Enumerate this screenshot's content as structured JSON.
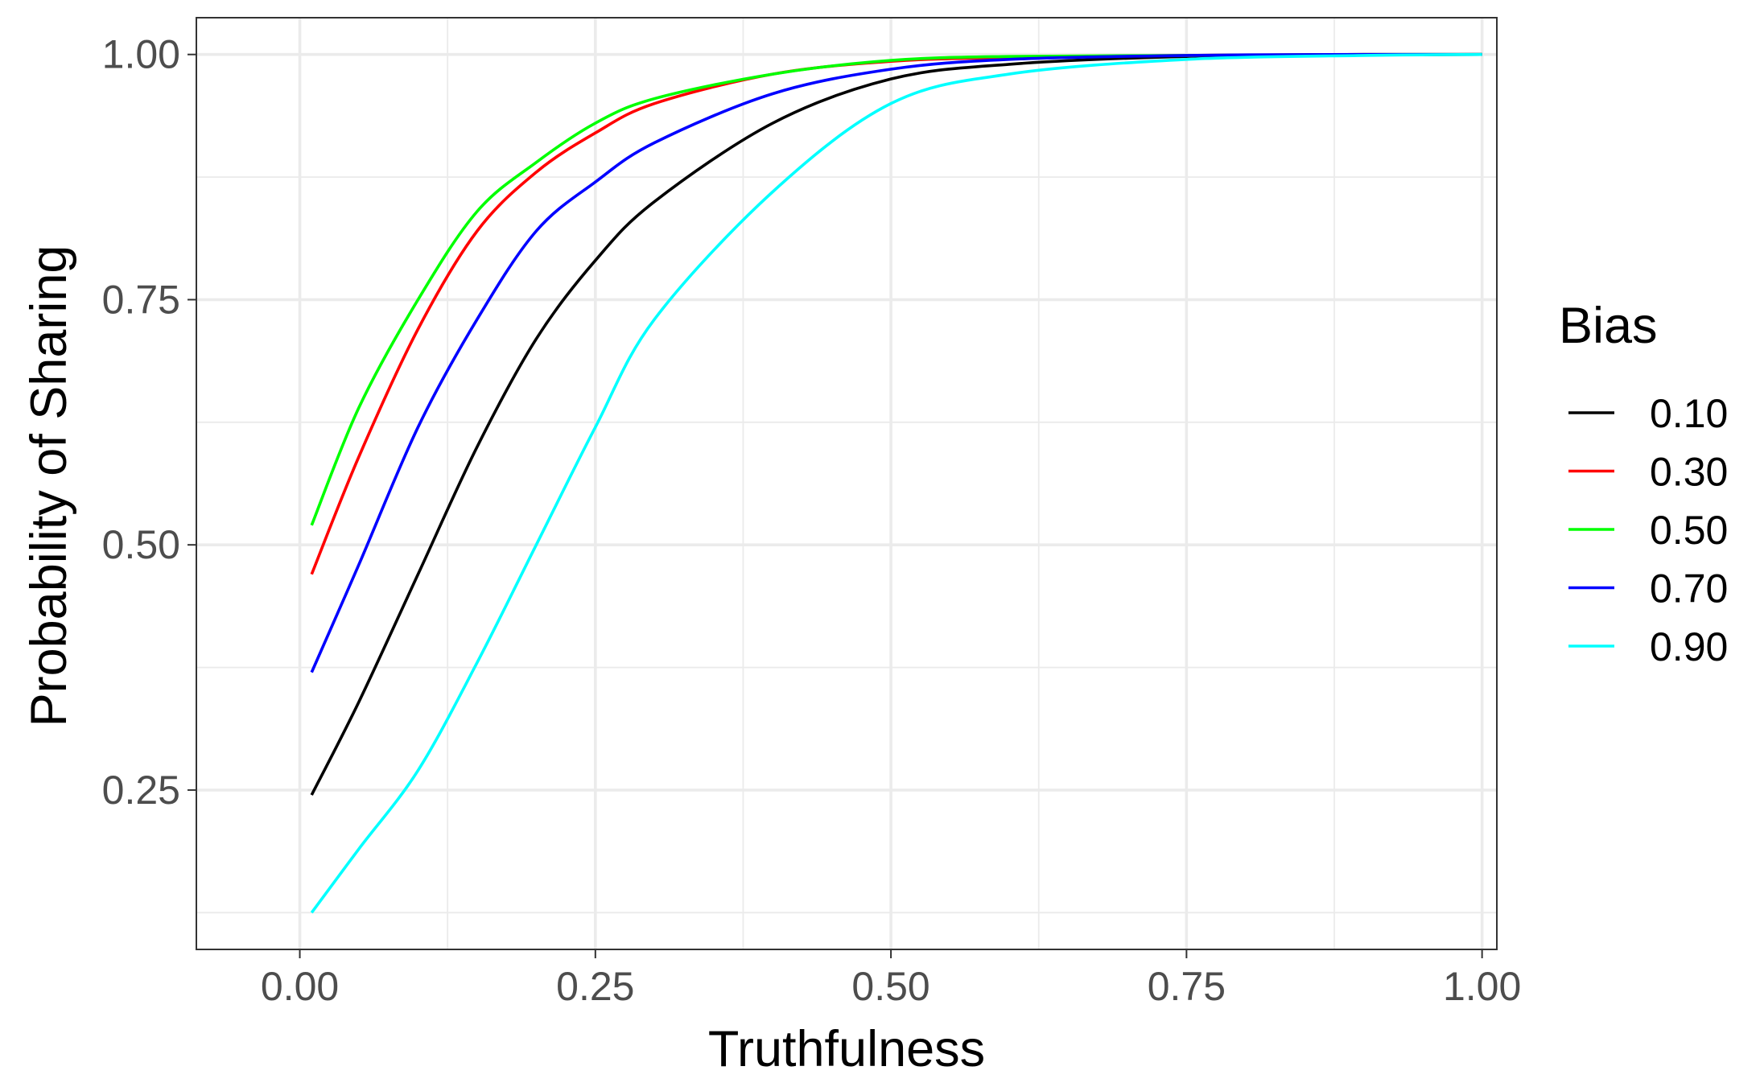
{
  "chart_data": {
    "type": "line",
    "title": "",
    "xlabel": "Truthfulness",
    "ylabel": "Probability of Sharing",
    "xlim": [
      -0.0875,
      1.0125
    ],
    "ylim": [
      0.0875,
      1.0375
    ],
    "x_ticks": [
      0.0,
      0.25,
      0.5,
      0.75,
      1.0
    ],
    "x_tick_labels": [
      "0.00",
      "0.25",
      "0.50",
      "0.75",
      "1.00"
    ],
    "y_ticks": [
      0.25,
      0.5,
      0.75,
      1.0
    ],
    "y_tick_labels": [
      "0.25",
      "0.50",
      "0.75",
      "1.00"
    ],
    "x_minor": [
      0.125,
      0.375,
      0.625,
      0.875
    ],
    "y_minor": [
      0.125,
      0.375,
      0.625,
      0.875
    ],
    "grid": true,
    "legend": {
      "title": "Bias",
      "position": "right"
    },
    "series": [
      {
        "name": "0.10",
        "color": "#000000",
        "x": [
          0.01,
          0.05,
          0.1,
          0.15,
          0.2,
          0.25,
          0.3,
          0.4,
          0.5,
          0.6,
          0.75,
          0.9,
          1.0
        ],
        "y": [
          0.245,
          0.34,
          0.47,
          0.6,
          0.71,
          0.79,
          0.85,
          0.93,
          0.975,
          0.99,
          0.998,
          0.9995,
          1.0
        ]
      },
      {
        "name": "0.30",
        "color": "#ff0000",
        "x": [
          0.01,
          0.05,
          0.1,
          0.15,
          0.2,
          0.25,
          0.3,
          0.4,
          0.5,
          0.6,
          0.75,
          0.9,
          1.0
        ],
        "y": [
          0.47,
          0.59,
          0.72,
          0.82,
          0.88,
          0.92,
          0.95,
          0.98,
          0.993,
          0.997,
          0.999,
          1.0,
          1.0
        ]
      },
      {
        "name": "0.50",
        "color": "#00ff00",
        "x": [
          0.01,
          0.05,
          0.1,
          0.15,
          0.2,
          0.25,
          0.3,
          0.4,
          0.5,
          0.6,
          0.75,
          0.9,
          1.0
        ],
        "y": [
          0.52,
          0.64,
          0.75,
          0.84,
          0.89,
          0.93,
          0.955,
          0.98,
          0.994,
          0.998,
          0.999,
          1.0,
          1.0
        ]
      },
      {
        "name": "0.70",
        "color": "#0000ff",
        "x": [
          0.01,
          0.05,
          0.1,
          0.15,
          0.2,
          0.25,
          0.3,
          0.4,
          0.5,
          0.6,
          0.75,
          0.9,
          1.0
        ],
        "y": [
          0.37,
          0.48,
          0.62,
          0.73,
          0.82,
          0.87,
          0.91,
          0.96,
          0.985,
          0.995,
          0.999,
          1.0,
          1.0
        ]
      },
      {
        "name": "0.90",
        "color": "#00ffff",
        "x": [
          0.01,
          0.05,
          0.1,
          0.15,
          0.2,
          0.25,
          0.3,
          0.4,
          0.5,
          0.6,
          0.75,
          0.9,
          1.0
        ],
        "y": [
          0.125,
          0.19,
          0.27,
          0.38,
          0.5,
          0.62,
          0.73,
          0.86,
          0.95,
          0.98,
          0.995,
          0.999,
          1.0
        ]
      }
    ]
  }
}
